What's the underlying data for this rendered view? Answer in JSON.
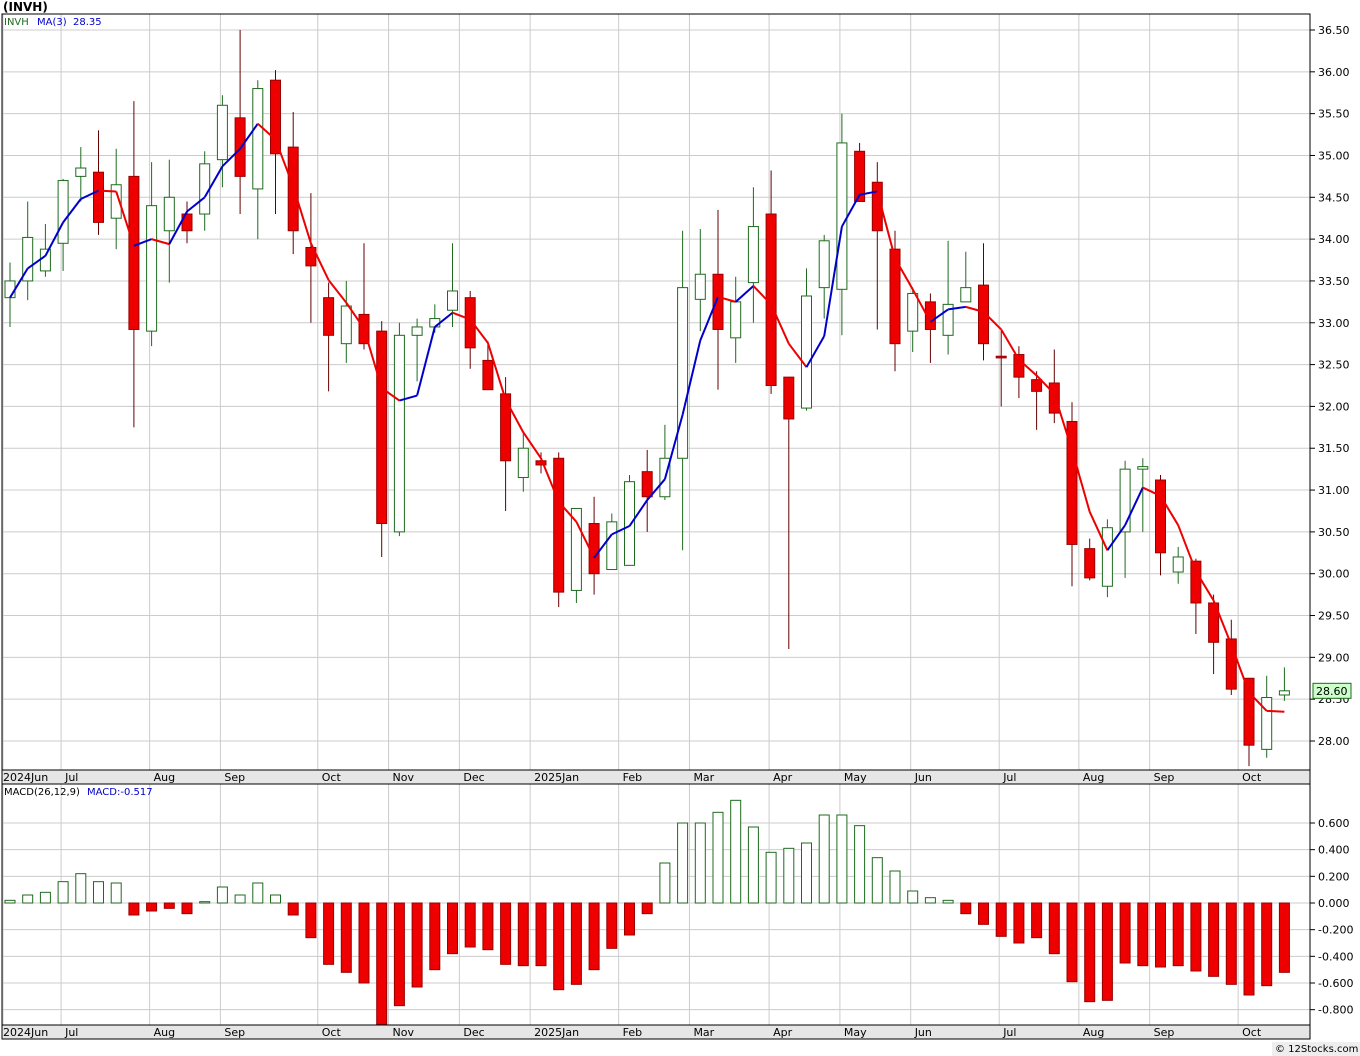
{
  "header": {
    "symbol": "(INVH)"
  },
  "price_legend": {
    "name": "INVH",
    "ma_label": "MA(3)",
    "ma_value": "28.35"
  },
  "macd_legend": {
    "name": "MACD(26,12,9)",
    "value_label": "MACD:-0.517"
  },
  "last_price_label": "28.60",
  "footer": {
    "credit": "© 12Stocks.com"
  },
  "colors": {
    "up": "#ffffff",
    "up_border": "#1e6b1e",
    "down": "#ee0000",
    "ma_up": "#0000cc",
    "ma_down": "#ee0000",
    "grid": "#cccccc"
  },
  "chart_data": [
    {
      "type": "candlestick",
      "title": "(INVH)",
      "x_labels": [
        "2024Jun",
        "Jul",
        "Aug",
        "Sep",
        "Oct",
        "Nov",
        "Dec",
        "2025Jan",
        "Feb",
        "Mar",
        "Apr",
        "May",
        "Jun",
        "Jul",
        "Aug",
        "Sep",
        "Oct"
      ],
      "yticks": [
        "28.00",
        "28.50",
        "29.00",
        "29.50",
        "30.00",
        "30.50",
        "31.00",
        "31.50",
        "32.00",
        "32.50",
        "33.00",
        "33.50",
        "34.00",
        "34.50",
        "35.00",
        "35.50",
        "36.00",
        "36.50"
      ],
      "ylim": [
        27.7,
        36.7
      ],
      "last_value": 28.6,
      "series": [
        {
          "name": "INVH",
          "candles": [
            {
              "o": 33.3,
              "h": 33.72,
              "l": 32.95,
              "c": 33.5
            },
            {
              "o": 33.5,
              "h": 34.45,
              "l": 33.27,
              "c": 34.02
            },
            {
              "o": 33.62,
              "h": 34.18,
              "l": 33.55,
              "c": 33.88
            },
            {
              "o": 33.95,
              "h": 34.72,
              "l": 33.62,
              "c": 34.7
            },
            {
              "o": 34.75,
              "h": 35.1,
              "l": 34.45,
              "c": 34.85
            },
            {
              "o": 34.8,
              "h": 35.3,
              "l": 34.05,
              "c": 34.2
            },
            {
              "o": 34.25,
              "h": 35.08,
              "l": 33.88,
              "c": 34.65
            },
            {
              "o": 34.75,
              "h": 35.65,
              "l": 31.75,
              "c": 32.92
            },
            {
              "o": 32.9,
              "h": 34.92,
              "l": 32.72,
              "c": 34.4
            },
            {
              "o": 34.1,
              "h": 34.95,
              "l": 33.48,
              "c": 34.5
            },
            {
              "o": 34.3,
              "h": 34.45,
              "l": 33.95,
              "c": 34.1
            },
            {
              "o": 34.3,
              "h": 35.05,
              "l": 34.1,
              "c": 34.9
            },
            {
              "o": 34.95,
              "h": 35.72,
              "l": 34.62,
              "c": 35.6
            },
            {
              "o": 35.45,
              "h": 36.5,
              "l": 34.3,
              "c": 34.75
            },
            {
              "o": 34.6,
              "h": 35.9,
              "l": 34.0,
              "c": 35.8
            },
            {
              "o": 35.9,
              "h": 36.02,
              "l": 34.3,
              "c": 35.02
            },
            {
              "o": 35.1,
              "h": 35.52,
              "l": 33.82,
              "c": 34.1
            },
            {
              "o": 33.9,
              "h": 34.55,
              "l": 33.0,
              "c": 33.68
            },
            {
              "o": 33.3,
              "h": 33.48,
              "l": 32.18,
              "c": 32.85
            },
            {
              "o": 32.75,
              "h": 33.5,
              "l": 32.52,
              "c": 33.2
            },
            {
              "o": 33.1,
              "h": 33.95,
              "l": 32.68,
              "c": 32.75
            },
            {
              "o": 32.9,
              "h": 33.02,
              "l": 30.2,
              "c": 30.6
            },
            {
              "o": 30.5,
              "h": 33.0,
              "l": 30.45,
              "c": 32.85
            },
            {
              "o": 32.85,
              "h": 33.05,
              "l": 32.3,
              "c": 32.95
            },
            {
              "o": 32.95,
              "h": 33.22,
              "l": 32.88,
              "c": 33.05
            },
            {
              "o": 33.15,
              "h": 33.95,
              "l": 32.95,
              "c": 33.38
            },
            {
              "o": 33.3,
              "h": 33.38,
              "l": 32.45,
              "c": 32.7
            },
            {
              "o": 32.55,
              "h": 32.78,
              "l": 32.2,
              "c": 32.2
            },
            {
              "o": 32.15,
              "h": 32.35,
              "l": 30.75,
              "c": 31.35
            },
            {
              "o": 31.15,
              "h": 31.7,
              "l": 30.98,
              "c": 31.5
            },
            {
              "o": 31.35,
              "h": 31.45,
              "l": 31.2,
              "c": 31.3
            },
            {
              "o": 31.38,
              "h": 31.45,
              "l": 29.6,
              "c": 29.78
            },
            {
              "o": 29.8,
              "h": 30.78,
              "l": 29.65,
              "c": 30.78
            },
            {
              "o": 30.6,
              "h": 30.92,
              "l": 29.75,
              "c": 30.0
            },
            {
              "o": 30.05,
              "h": 30.72,
              "l": 30.05,
              "c": 30.62
            },
            {
              "o": 30.1,
              "h": 31.18,
              "l": 30.1,
              "c": 31.1
            },
            {
              "o": 31.22,
              "h": 31.48,
              "l": 30.5,
              "c": 30.92
            },
            {
              "o": 30.92,
              "h": 31.78,
              "l": 30.88,
              "c": 31.38
            },
            {
              "o": 31.38,
              "h": 34.1,
              "l": 30.28,
              "c": 33.42
            },
            {
              "o": 33.28,
              "h": 34.12,
              "l": 32.9,
              "c": 33.58
            },
            {
              "o": 33.58,
              "h": 34.35,
              "l": 32.2,
              "c": 32.92
            },
            {
              "o": 32.82,
              "h": 33.55,
              "l": 32.52,
              "c": 33.25
            },
            {
              "o": 33.48,
              "h": 34.62,
              "l": 33.0,
              "c": 34.15
            },
            {
              "o": 34.3,
              "h": 34.82,
              "l": 32.15,
              "c": 32.25
            },
            {
              "o": 32.35,
              "h": 32.35,
              "l": 29.1,
              "c": 31.85
            },
            {
              "o": 31.98,
              "h": 33.65,
              "l": 31.95,
              "c": 33.32
            },
            {
              "o": 33.42,
              "h": 34.05,
              "l": 33.05,
              "c": 33.98
            },
            {
              "o": 33.4,
              "h": 35.5,
              "l": 32.85,
              "c": 35.15
            },
            {
              "o": 35.05,
              "h": 35.15,
              "l": 34.45,
              "c": 34.45
            },
            {
              "o": 34.68,
              "h": 34.92,
              "l": 32.92,
              "c": 34.1
            },
            {
              "o": 33.88,
              "h": 34.1,
              "l": 32.42,
              "c": 32.75
            },
            {
              "o": 32.9,
              "h": 33.42,
              "l": 32.65,
              "c": 33.35
            },
            {
              "o": 33.25,
              "h": 33.35,
              "l": 32.52,
              "c": 32.92
            },
            {
              "o": 32.85,
              "h": 33.98,
              "l": 32.62,
              "c": 33.22
            },
            {
              "o": 33.25,
              "h": 33.85,
              "l": 33.25,
              "c": 33.42
            },
            {
              "o": 33.45,
              "h": 33.95,
              "l": 32.55,
              "c": 32.75
            },
            {
              "o": 32.6,
              "h": 32.9,
              "l": 32.0,
              "c": 32.58
            },
            {
              "o": 32.62,
              "h": 32.72,
              "l": 32.1,
              "c": 32.35
            },
            {
              "o": 32.32,
              "h": 32.42,
              "l": 31.72,
              "c": 32.18
            },
            {
              "o": 32.28,
              "h": 32.68,
              "l": 31.8,
              "c": 31.92
            },
            {
              "o": 31.82,
              "h": 32.05,
              "l": 29.85,
              "c": 30.35
            },
            {
              "o": 30.3,
              "h": 30.42,
              "l": 29.92,
              "c": 29.95
            },
            {
              "o": 29.85,
              "h": 30.65,
              "l": 29.72,
              "c": 30.55
            },
            {
              "o": 30.5,
              "h": 31.35,
              "l": 29.95,
              "c": 31.25
            },
            {
              "o": 31.25,
              "h": 31.38,
              "l": 30.5,
              "c": 31.28
            },
            {
              "o": 31.12,
              "h": 31.18,
              "l": 29.98,
              "c": 30.25
            },
            {
              "o": 30.02,
              "h": 30.32,
              "l": 29.88,
              "c": 30.2
            },
            {
              "o": 30.15,
              "h": 30.18,
              "l": 29.28,
              "c": 29.65
            },
            {
              "o": 29.65,
              "h": 29.75,
              "l": 28.8,
              "c": 29.18
            },
            {
              "o": 29.22,
              "h": 29.45,
              "l": 28.55,
              "c": 28.62
            },
            {
              "o": 28.75,
              "h": 28.75,
              "l": 27.7,
              "c": 27.95
            },
            {
              "o": 27.9,
              "h": 28.78,
              "l": 27.8,
              "c": 28.52
            },
            {
              "o": 28.55,
              "h": 28.88,
              "l": 28.48,
              "c": 28.6
            }
          ]
        },
        {
          "name": "MA(3)",
          "values": [
            33.3,
            33.65,
            33.8,
            34.2,
            34.48,
            34.58,
            34.57,
            33.92,
            34.0,
            33.94,
            34.33,
            34.5,
            34.87,
            35.08,
            35.38,
            35.19,
            34.63,
            33.95,
            33.51,
            33.24,
            32.93,
            32.22,
            32.07,
            32.13,
            32.95,
            33.12,
            33.04,
            32.76,
            32.08,
            31.69,
            31.38,
            30.86,
            30.62,
            30.19,
            30.47,
            30.57,
            30.88,
            31.13,
            31.9,
            32.79,
            33.31,
            33.25,
            33.44,
            33.22,
            32.75,
            32.47,
            32.84,
            34.15,
            34.53,
            34.57,
            33.77,
            33.4,
            33.01,
            33.16,
            33.19,
            33.13,
            32.92,
            32.56,
            32.37,
            32.15,
            31.48,
            30.74,
            30.28,
            30.58,
            31.03,
            30.93,
            30.58,
            30.03,
            29.68,
            29.15,
            28.58,
            28.36,
            28.35
          ]
        }
      ]
    },
    {
      "type": "bar",
      "title": "MACD(26,12,9)",
      "x_labels": [
        "2024Jun",
        "Jul",
        "Aug",
        "Sep",
        "Oct",
        "Nov",
        "Dec",
        "2025Jan",
        "Feb",
        "Mar",
        "Apr",
        "May",
        "Jun",
        "Jul",
        "Aug",
        "Sep",
        "Oct"
      ],
      "yticks": [
        "-0.800",
        "-0.600",
        "-0.400",
        "-0.200",
        "0.000",
        "0.200",
        "0.400",
        "0.600"
      ],
      "ylim": [
        -0.9,
        0.78
      ],
      "series": [
        {
          "name": "MACD",
          "values": [
            0.02,
            0.06,
            0.08,
            0.16,
            0.22,
            0.16,
            0.15,
            -0.09,
            -0.06,
            -0.04,
            -0.08,
            0.01,
            0.12,
            0.06,
            0.15,
            0.06,
            -0.09,
            -0.26,
            -0.46,
            -0.52,
            -0.6,
            -0.91,
            -0.77,
            -0.63,
            -0.5,
            -0.38,
            -0.33,
            -0.35,
            -0.46,
            -0.47,
            -0.47,
            -0.65,
            -0.61,
            -0.5,
            -0.34,
            -0.24,
            -0.08,
            0.3,
            0.6,
            0.6,
            0.68,
            0.77,
            0.57,
            0.38,
            0.41,
            0.45,
            0.66,
            0.66,
            0.58,
            0.34,
            0.24,
            0.09,
            0.04,
            0.02,
            -0.08,
            -0.16,
            -0.25,
            -0.3,
            -0.26,
            -0.38,
            -0.59,
            -0.74,
            -0.73,
            -0.45,
            -0.47,
            -0.48,
            -0.47,
            -0.51,
            -0.55,
            -0.61,
            -0.69,
            -0.62,
            -0.52
          ]
        }
      ]
    }
  ]
}
